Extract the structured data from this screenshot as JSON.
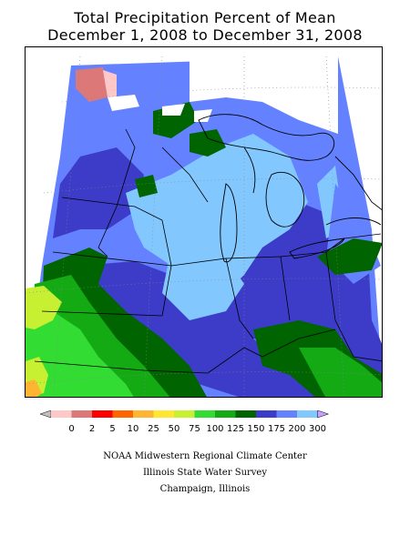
{
  "title": {
    "line1": "Total Precipitation Percent of Mean",
    "line2": "December 1, 2008 to December 31, 2008"
  },
  "legend": {
    "colors": [
      "#c0c0c0",
      "#ffc8c8",
      "#dc7878",
      "#ff0000",
      "#ff6400",
      "#ffb432",
      "#ffe632",
      "#c8f032",
      "#32dc32",
      "#14aa14",
      "#006400",
      "#3c3cc8",
      "#6482ff",
      "#82c8ff",
      "#c8a0ff"
    ],
    "labels": [
      "0",
      "2",
      "5",
      "10",
      "25",
      "50",
      "75",
      "100",
      "125",
      "150",
      "175",
      "200",
      "300"
    ]
  },
  "credits": {
    "line1": "NOAA Midwestern Regional Climate Center",
    "line2": "Illinois State Water Survey",
    "line3": "Champaign, Illinois"
  },
  "colors": {
    "dark_blue": "#3c3cc8",
    "medium_blue": "#6482ff",
    "light_blue": "#82c8ff",
    "dark_green": "#006400",
    "green": "#14aa14",
    "bright_green": "#32dc32",
    "yellow_green": "#c8f032",
    "pink": "#dc7878"
  }
}
